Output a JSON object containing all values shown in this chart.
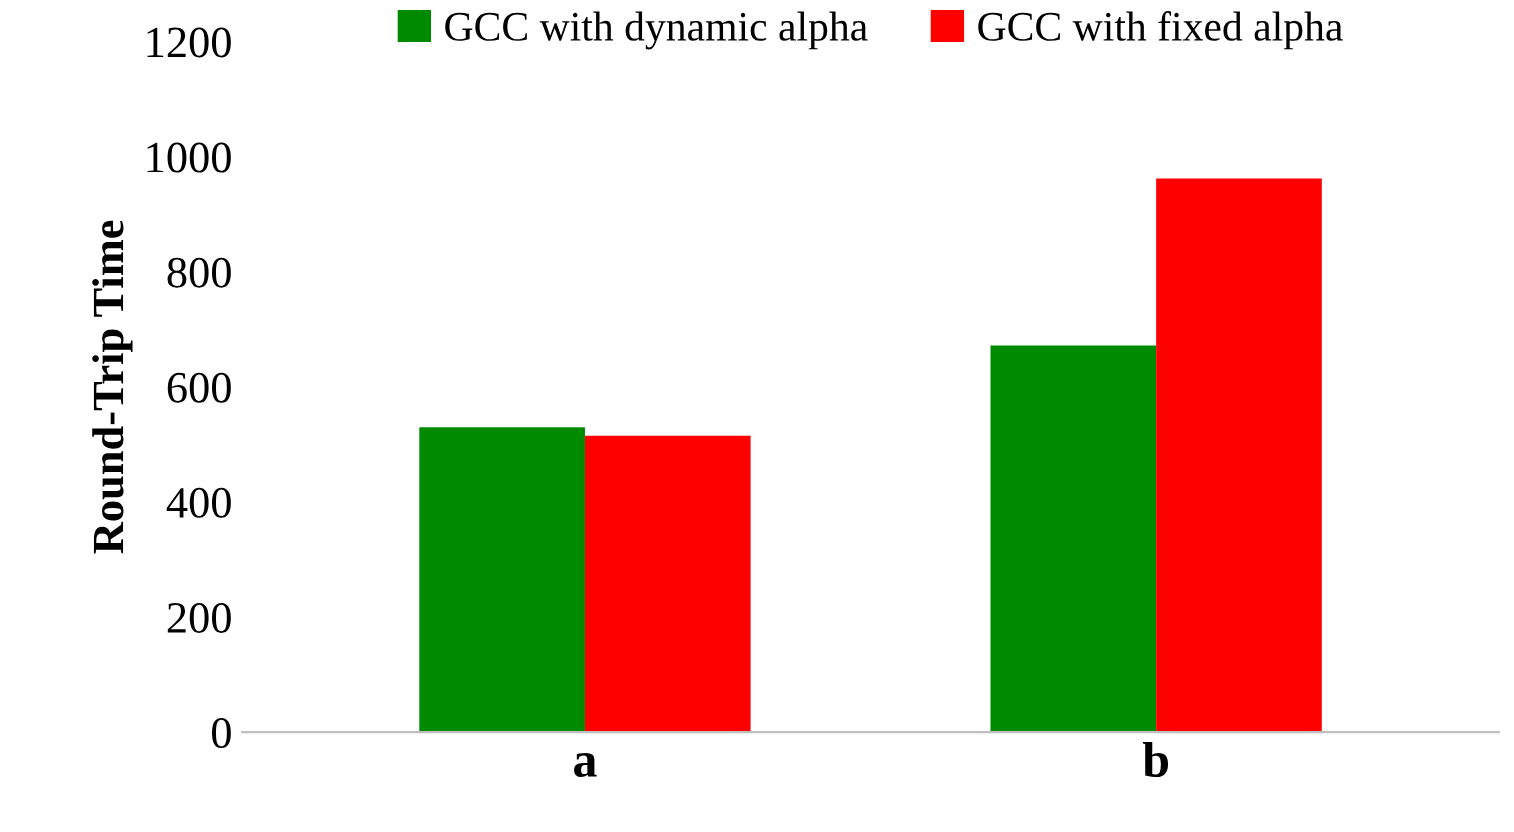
{
  "chart_data": {
    "type": "bar",
    "ylabel": "Round-Trip Time",
    "categories": [
      "a",
      "b"
    ],
    "series": [
      {
        "name": "GCC with dynamic alpha",
        "color": "#008a00",
        "values": [
          530,
          672
        ]
      },
      {
        "name": "GCC with fixed alpha",
        "color": "#ff0000",
        "values": [
          515,
          962
        ]
      }
    ],
    "ylim": [
      0,
      1200
    ],
    "yticks": [
      0,
      200,
      400,
      600,
      800,
      1000,
      1200
    ],
    "grid": false,
    "legend": "top"
  }
}
